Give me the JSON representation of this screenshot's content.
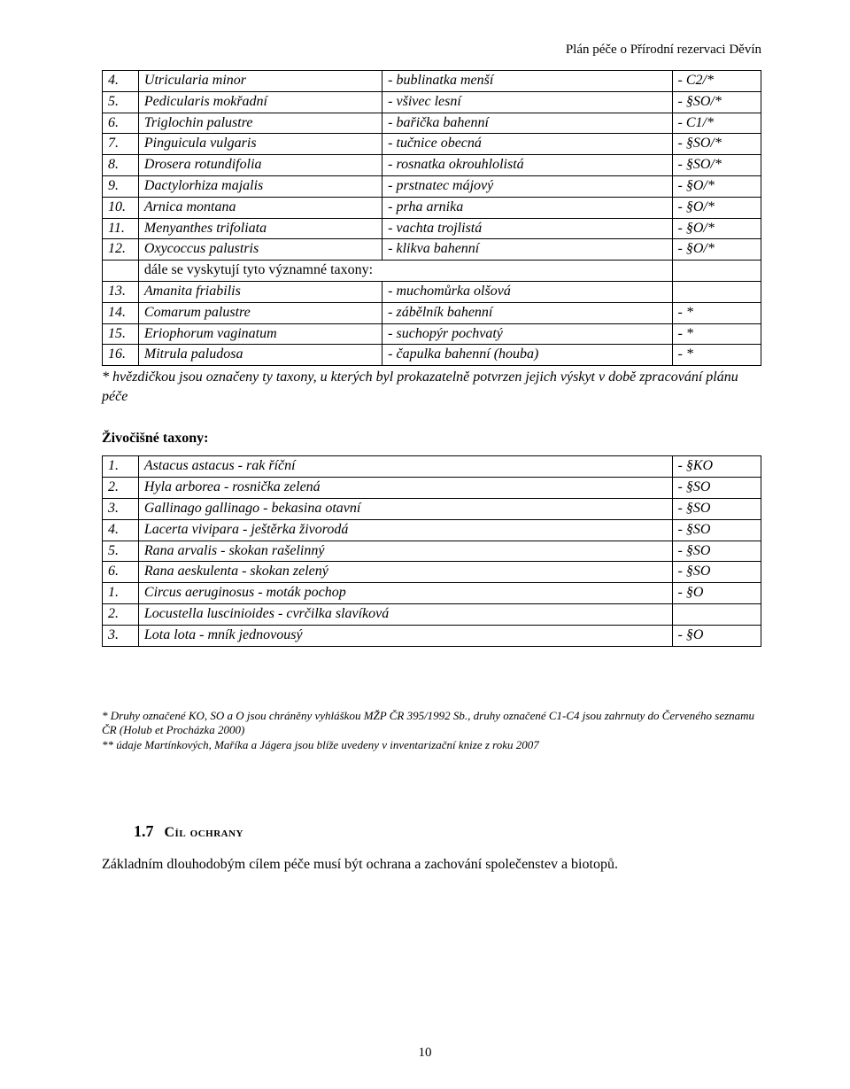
{
  "header": {
    "text": "Plán péče o Přírodní rezervaci Děvín"
  },
  "table1": {
    "rows": [
      {
        "n": "4.",
        "latin": "Utricularia minor",
        "cz": "- bublinatka menší",
        "status": "- C2/*"
      },
      {
        "n": "5.",
        "latin": "Pedicularis mokřadní",
        "cz": "- všivec lesní",
        "status": "- §SO/*"
      },
      {
        "n": "6.",
        "latin": "Triglochin palustre",
        "cz": "- bařička bahenní",
        "status": "- C1/*"
      },
      {
        "n": "7.",
        "latin": "Pinguicula vulgaris",
        "cz": "- tučnice obecná",
        "status": "- §SO/*"
      },
      {
        "n": "8.",
        "latin": "Drosera rotundifolia",
        "cz": "- rosnatka okrouhlolistá",
        "status": "- §SO/*"
      },
      {
        "n": "9.",
        "latin": "Dactylorhiza majalis",
        "cz": "- prstnatec májový",
        "status": "- §O/*"
      },
      {
        "n": "10.",
        "latin": "Arnica montana",
        "cz": "- prha arnika",
        "status": "- §O/*"
      },
      {
        "n": "11.",
        "latin": "Menyanthes trifoliata",
        "cz": "- vachta trojlistá",
        "status": "- §O/*"
      },
      {
        "n": "12.",
        "latin": "Oxycoccus palustris",
        "cz": "- klikva bahenní",
        "status": "- §O/*"
      }
    ],
    "span_row": {
      "text": "dále se vyskytují tyto významné taxony:"
    },
    "rows2": [
      {
        "n": "13.",
        "latin": "Amanita friabilis",
        "cz": "- muchomůrka olšová",
        "status": ""
      },
      {
        "n": "14.",
        "latin": "Comarum palustre",
        "cz": "- zábělník bahenní",
        "status": "- *"
      },
      {
        "n": "15.",
        "latin": "Eriophorum vaginatum",
        "cz": "- suchopýr pochvatý",
        "status": "- *"
      },
      {
        "n": "16.",
        "latin": "Mitrula paludosa",
        "cz": "- čapulka bahenní (houba)",
        "status": "- *"
      }
    ]
  },
  "footnote1": "* hvězdičkou jsou označeny ty taxony, u kterých byl prokazatelně potvrzen jejich výskyt v době zpracování plánu péče",
  "section2_heading": "Živočišné taxony:",
  "table2": {
    "rows": [
      {
        "n": "1.",
        "name": "Astacus astacus - rak říční",
        "status": "- §KO"
      },
      {
        "n": "2.",
        "name": "Hyla arborea - rosnička zelená",
        "status": "- §SO"
      },
      {
        "n": "3.",
        "name": "Gallinago gallinago - bekasina otavní",
        "status": "- §SO"
      },
      {
        "n": "4.",
        "name": "Lacerta vivipara - ještěrka živorodá",
        "status": "- §SO"
      },
      {
        "n": "5.",
        "name": "Rana arvalis - skokan rašelinný",
        "status": "- §SO"
      },
      {
        "n": "6.",
        "name": "Rana aeskulenta - skokan zelený",
        "status": "- §SO"
      },
      {
        "n": "1.",
        "name": "Circus aeruginosus - moták pochop",
        "status": "- §O"
      },
      {
        "n": "2.",
        "name": "Locustella luscinioides - cvrčilka slavíková",
        "status": ""
      },
      {
        "n": "3.",
        "name": "Lota lota - mník jednovousý",
        "status": "- §O"
      }
    ]
  },
  "notes": {
    "line1": "* Druhy označené KO, SO a O jsou chráněny vyhláškou MŽP ČR 395/1992 Sb., druhy označené C1-C4 jsou zahrnuty do Červeného seznamu ČR (Holub et Procházka 2000)",
    "line2": "** údaje Martínkových, Maříka a Jágera jsou blíže uvedeny v inventarizační knize z roku 2007"
  },
  "chapter": {
    "number": "1.7",
    "title": "Cíl ochrany",
    "body": "Základním dlouhodobým cílem péče musí být ochrana a zachování společenstev a biotopů."
  },
  "page_number": "10"
}
